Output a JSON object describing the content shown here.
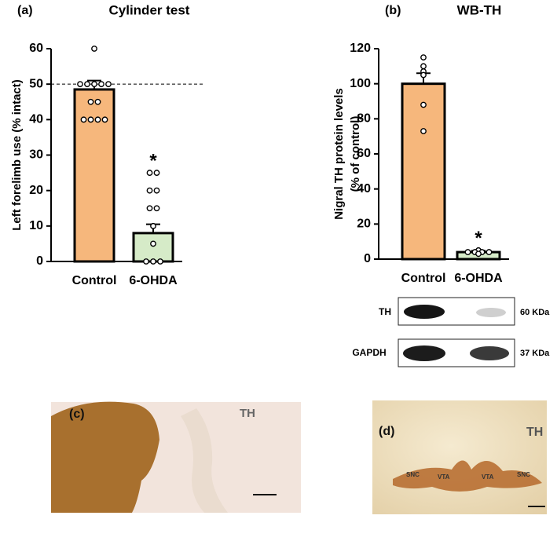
{
  "chart_data": [
    {
      "type": "bar",
      "panel": "(a)",
      "title": "Cylinder test",
      "ylabel": [
        "Left forelimb use (% intact)"
      ],
      "categories": [
        "Control",
        "6-OHDA"
      ],
      "values": [
        48.5,
        8
      ],
      "errors": [
        2.5,
        2.5
      ],
      "colors": [
        "#f6b77c",
        "#d6ebc8"
      ],
      "points": [
        [
          60,
          50,
          50,
          50,
          50,
          50,
          45,
          45,
          40,
          40,
          40,
          40
        ],
        [
          25,
          25,
          20,
          20,
          15,
          15,
          10,
          5,
          0,
          0,
          0
        ]
      ],
      "significance": [
        null,
        "*"
      ],
      "reference_line": 50,
      "ylim": [
        0,
        60
      ],
      "yticks": [
        0,
        10,
        20,
        30,
        40,
        50,
        60
      ]
    },
    {
      "type": "bar",
      "panel": "(b)",
      "title": "WB-TH",
      "ylabel": [
        "Nigral TH protein levels",
        "(% of control)"
      ],
      "categories": [
        "Control",
        "6-OHDA"
      ],
      "values": [
        100,
        4
      ],
      "errors": [
        6,
        0.8
      ],
      "colors": [
        "#f6b77c",
        "#d6ebc8"
      ],
      "points": [
        [
          115,
          110,
          107,
          105,
          88,
          73
        ],
        [
          5,
          4,
          4,
          4,
          4,
          3
        ]
      ],
      "significance": [
        null,
        "*"
      ],
      "ylim": [
        0,
        120
      ],
      "yticks": [
        0,
        20,
        40,
        60,
        80,
        100,
        120
      ]
    }
  ],
  "blot": {
    "rows": [
      {
        "label": "TH",
        "size": "60 KDa"
      },
      {
        "label": "GAPDH",
        "size": "37 KDa"
      }
    ]
  },
  "micrographs": [
    {
      "panel": "(c)",
      "stain": "TH"
    },
    {
      "panel": "(d)",
      "stain": "TH",
      "regions": [
        "SNC",
        "VTA",
        "VTA",
        "SNC"
      ]
    }
  ]
}
